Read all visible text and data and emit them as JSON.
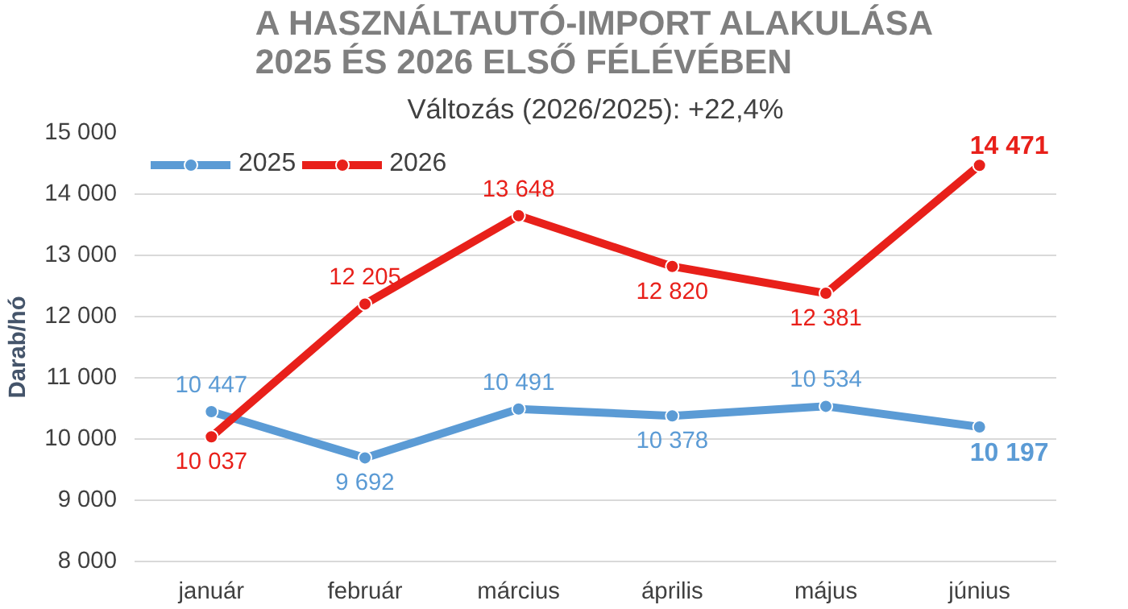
{
  "chart_data": {
    "type": "line",
    "title": "A HASZNÁLTAUTÓ-IMPORT ALAKULÁSA\n2025 ÉS 2026 ELSŐ FÉLÉVÉBEN",
    "subtitle": "Változás (2026/2025): +22,4%",
    "ylabel": "Darab/hó",
    "categories": [
      "január",
      "február",
      "március",
      "április",
      "május",
      "június"
    ],
    "series": [
      {
        "name": "2025",
        "color": "#5b9bd5",
        "values": [
          10447,
          9692,
          10491,
          10378,
          10534,
          10197
        ]
      },
      {
        "name": "2026",
        "color": "#e8201a",
        "values": [
          10037,
          12205,
          13648,
          12820,
          12381,
          14471
        ]
      }
    ],
    "value_labels": [
      [
        "10 447",
        "9 692",
        "10 491",
        "10 378",
        "10 534",
        "10 197"
      ],
      [
        "10 037",
        "12 205",
        "13 648",
        "12 820",
        "12 381",
        "14 471"
      ]
    ],
    "ylim": [
      8000,
      15000
    ],
    "yticks": [
      {
        "value": 8000,
        "label": "8 000"
      },
      {
        "value": 9000,
        "label": "9 000"
      },
      {
        "value": 10000,
        "label": "10 000"
      },
      {
        "value": 11000,
        "label": "11 000"
      },
      {
        "value": 12000,
        "label": "12 000"
      },
      {
        "value": 13000,
        "label": "13 000"
      },
      {
        "value": 14000,
        "label": "14 000"
      },
      {
        "value": 15000,
        "label": "15 000"
      }
    ],
    "grid": "y",
    "legend": "top left",
    "marker": "circle",
    "line_style": "solid"
  }
}
